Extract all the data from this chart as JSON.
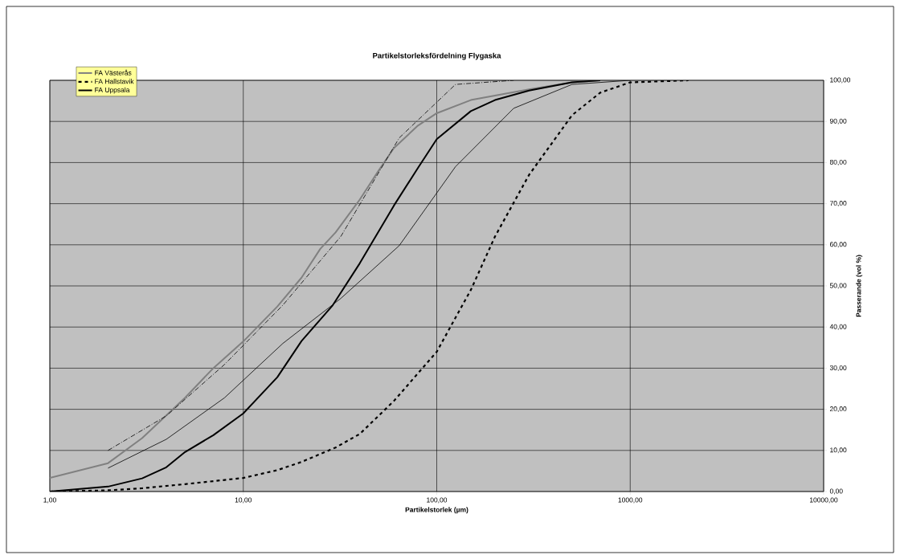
{
  "chart_data": {
    "type": "line",
    "title": "Partikelstorleksfördelning Flygaska",
    "xlabel": "Partikelstorlek (µm)",
    "ylabel": "Passerande (vol %)",
    "log": "x",
    "grid": true,
    "legend": "top left",
    "marker": "none",
    "xlim": [
      1,
      10000
    ],
    "ylim": [
      0,
      100
    ],
    "xticks": [
      {
        "value": 1,
        "label": "1,00"
      },
      {
        "value": 10,
        "label": "10,00"
      },
      {
        "value": 100,
        "label": "100,00"
      },
      {
        "value": 1000,
        "label": "1000,00"
      },
      {
        "value": 10000,
        "label": "10000,00"
      }
    ],
    "yticks": [
      {
        "value": 0,
        "label": "0,00"
      },
      {
        "value": 10,
        "label": "10,00"
      },
      {
        "value": 20,
        "label": "20,00"
      },
      {
        "value": 30,
        "label": "30,00"
      },
      {
        "value": 40,
        "label": "40,00"
      },
      {
        "value": 50,
        "label": "50,00"
      },
      {
        "value": 60,
        "label": "60,00"
      },
      {
        "value": 70,
        "label": "70,00"
      },
      {
        "value": 80,
        "label": "80,00"
      },
      {
        "value": 90,
        "label": "90,00"
      },
      {
        "value": 100,
        "label": "100,00"
      }
    ],
    "series": [
      {
        "name": "FA Västerås",
        "color": "#808080",
        "line_style": "solid",
        "x": [
          1,
          2,
          3,
          5,
          7,
          10,
          15,
          20,
          25,
          30,
          40,
          50,
          60,
          80,
          100,
          150,
          200,
          300,
          500,
          700
        ],
        "values": [
          3.3,
          6.9,
          13,
          22.8,
          30,
          36.5,
          45,
          52,
          59,
          63,
          71,
          78,
          83.5,
          89,
          92,
          95.2,
          96.3,
          97.8,
          99.5,
          100
        ]
      },
      {
        "name": "FA Hallstavik",
        "color": "#000000",
        "line_style": "dashed",
        "x": [
          1,
          2,
          3,
          5,
          10,
          15,
          20,
          30,
          40,
          60,
          100,
          150,
          200,
          300,
          500,
          700,
          1000,
          2000
        ],
        "values": [
          0,
          0.3,
          0.8,
          1.8,
          3.3,
          5.2,
          7.2,
          10.7,
          14,
          22,
          34,
          49,
          62,
          77,
          91.5,
          97,
          99.5,
          100
        ]
      },
      {
        "name": null,
        "color": "#000000",
        "line_style": "dashdot",
        "x": [
          2,
          4,
          8,
          16,
          32,
          64,
          125,
          250
        ],
        "values": [
          10,
          18.4,
          30.9,
          45.3,
          62.1,
          86,
          99,
          100
        ]
      },
      {
        "name": null,
        "color": "#000000",
        "line_style": "solid",
        "x": [
          2,
          4,
          8,
          16,
          32,
          64,
          125,
          250,
          500,
          1000
        ],
        "values": [
          5.7,
          12.7,
          22.8,
          36,
          47,
          59.8,
          79,
          93.2,
          99,
          100
        ]
      },
      {
        "name": "FA Uppsala",
        "color": "#000000",
        "line_style": "solid",
        "x": [
          1,
          2,
          3,
          4,
          5,
          7,
          10,
          15,
          20,
          29,
          40,
          60,
          80,
          100,
          150,
          200,
          300,
          500,
          700
        ],
        "values": [
          0,
          1.2,
          3.2,
          5.9,
          9.6,
          13.7,
          19,
          27.8,
          36.6,
          45.3,
          55.5,
          69.5,
          78.7,
          85.7,
          92.5,
          95.2,
          97.5,
          99.5,
          100
        ]
      }
    ]
  }
}
